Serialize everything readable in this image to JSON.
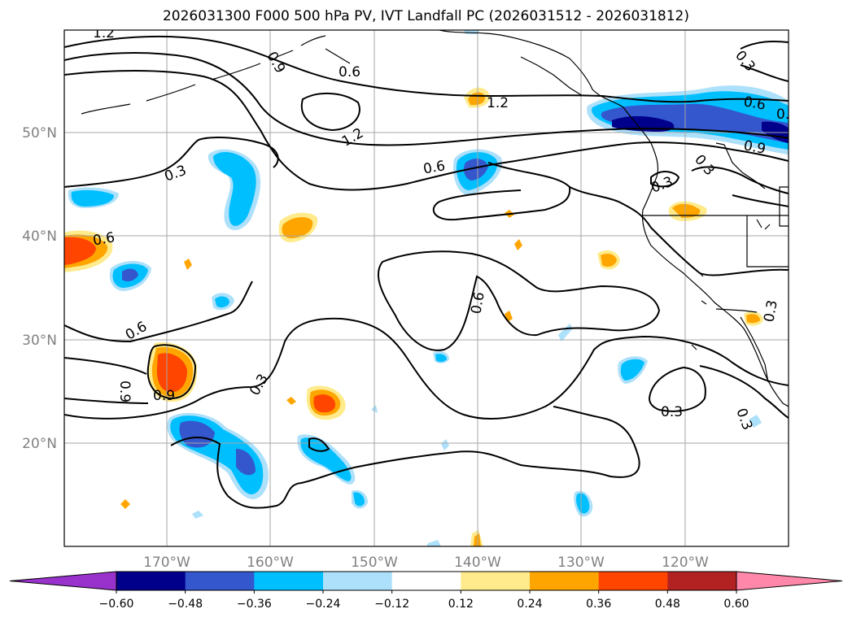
{
  "title": "2026031300 F000 500 hPa PV, IVT Landfall PC (2026031512 - 2026031812)",
  "map": {
    "lon_ticks": [
      "170°W",
      "160°W",
      "150°W",
      "140°W",
      "130°W",
      "120°W"
    ],
    "lat_ticks": [
      "50°N",
      "40°N",
      "30°N",
      "20°N"
    ],
    "contour_labels": [
      "1.2",
      "1.2",
      "1.2",
      "0.9",
      "0.6",
      "0.6",
      "0.3",
      "0.6",
      "0.6",
      "0.3",
      "0.6",
      "0.9",
      "0.3",
      "0.6",
      "0.6",
      "0.9",
      "0.9",
      "0.3",
      "0.3",
      "0.3",
      "0.3",
      "0.3",
      "0.6"
    ]
  },
  "colorbar": {
    "tick_labels": [
      "−0.60",
      "−0.48",
      "−0.36",
      "−0.24",
      "−0.12",
      "0.12",
      "0.24",
      "0.36",
      "0.48",
      "0.60"
    ],
    "colors": [
      "#9932CC",
      "#00008B",
      "#3457CD",
      "#00BFFF",
      "#ADE0FA",
      "#FFFFFF",
      "#FFEB8C",
      "#FFA500",
      "#FF4500",
      "#B22222",
      "#FF88AA"
    ]
  }
}
